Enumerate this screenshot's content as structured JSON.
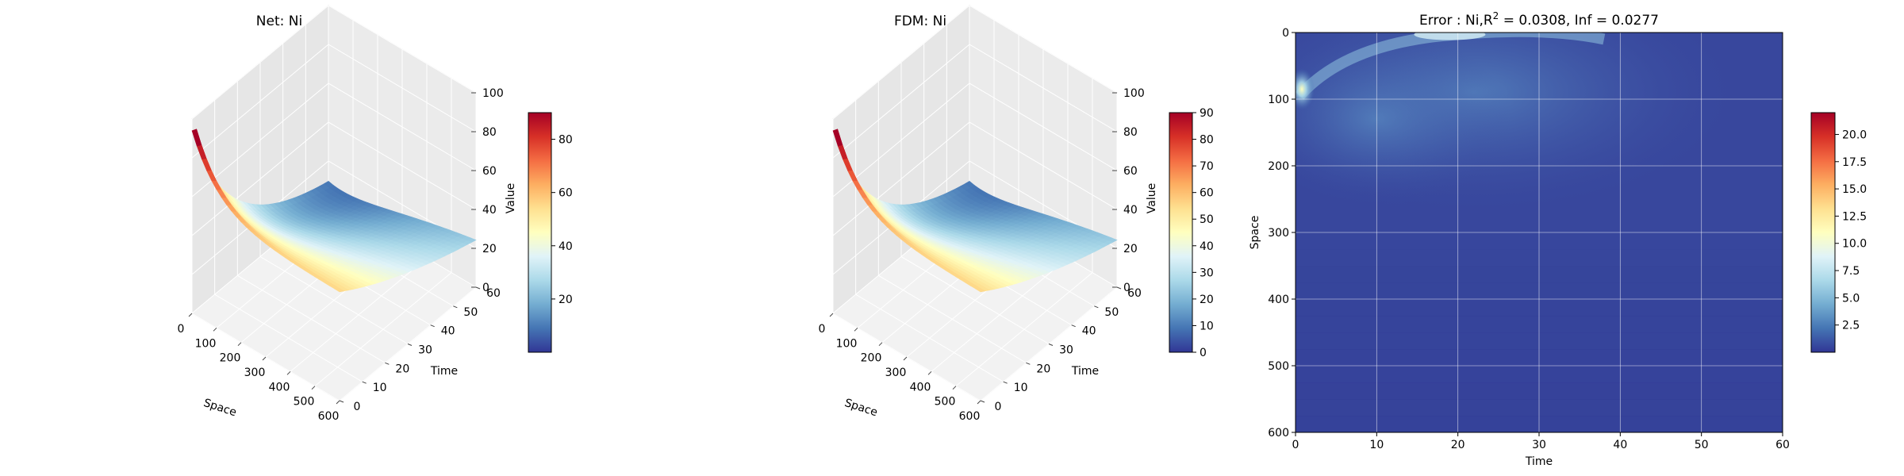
{
  "figure": {
    "panels": 3
  },
  "chart_data": [
    {
      "type": "surface3d",
      "title": "Net: Ni",
      "xlabel": "Space",
      "ylabel": "Time",
      "zlabel": "Value",
      "x_ticks": [
        "0",
        "100",
        "200",
        "300",
        "400",
        "500",
        "600"
      ],
      "y_ticks": [
        "0",
        "10",
        "20",
        "30",
        "40",
        "50",
        "60"
      ],
      "z_ticks": [
        "0",
        "20",
        "40",
        "60",
        "80",
        "100"
      ],
      "xlim": [
        0,
        600
      ],
      "ylim": [
        0,
        60
      ],
      "zlim": [
        0,
        100
      ],
      "peak_value": 90,
      "peak_space": 0,
      "peak_time": 0,
      "colormap": "RdYlBu_r",
      "colorbar": {
        "range": [
          0,
          90
        ],
        "ticks": [
          "20",
          "40",
          "60",
          "80"
        ]
      }
    },
    {
      "type": "surface3d",
      "title": "FDM: Ni",
      "xlabel": "Space",
      "ylabel": "Time",
      "zlabel": "Value",
      "x_ticks": [
        "0",
        "100",
        "200",
        "300",
        "400",
        "500",
        "600"
      ],
      "y_ticks": [
        "0",
        "10",
        "20",
        "30",
        "40",
        "50",
        "60"
      ],
      "z_ticks": [
        "0",
        "20",
        "40",
        "60",
        "80",
        "100"
      ],
      "xlim": [
        0,
        600
      ],
      "ylim": [
        0,
        60
      ],
      "zlim": [
        0,
        100
      ],
      "peak_value": 90,
      "peak_space": 0,
      "peak_time": 0,
      "colormap": "RdYlBu_r",
      "colorbar": {
        "range": [
          0,
          90
        ],
        "ticks": [
          "0",
          "10",
          "20",
          "30",
          "40",
          "50",
          "60",
          "70",
          "80",
          "90"
        ]
      }
    },
    {
      "type": "heatmap",
      "title_prefix": "Error : Ni,",
      "title_r": "R",
      "title_sup": "2",
      "title_suffix": " = 0.0308, Inf = 0.0277",
      "xlabel": "Time",
      "ylabel": "Space",
      "x_ticks": [
        "0",
        "10",
        "20",
        "30",
        "40",
        "50",
        "60"
      ],
      "y_ticks": [
        "0",
        "100",
        "200",
        "300",
        "400",
        "500",
        "600"
      ],
      "xlim": [
        0,
        60
      ],
      "ylim": [
        600,
        0
      ],
      "max_error": 22,
      "max_error_at": {
        "time": 0,
        "space": 85
      },
      "grid": true,
      "colormap": "RdYlBu_r",
      "colorbar": {
        "range": [
          0,
          22
        ],
        "ticks": [
          "2.5",
          "5.0",
          "7.5",
          "10.0",
          "12.5",
          "15.0",
          "17.5",
          "20.0"
        ]
      }
    }
  ]
}
